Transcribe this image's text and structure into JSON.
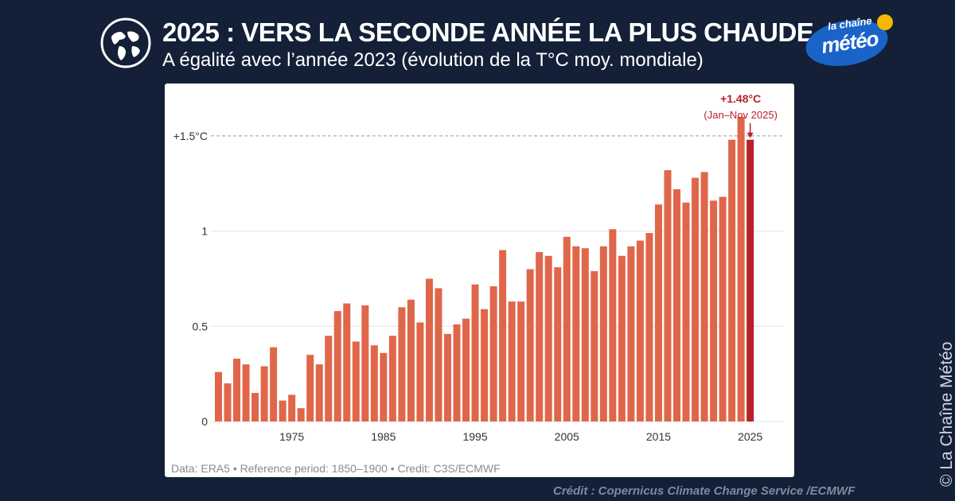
{
  "header": {
    "title": "2025 : VERS LA SECONDE ANNÉE LA PLUS CHAUDE",
    "subtitle": "A égalité avec l’année 2023 (évolution de la T°C moy. mondiale)",
    "globe_icon": "globe-icon"
  },
  "logo": {
    "small": "la chaîne",
    "big": "météo",
    "sun_color": "#f5b800",
    "bubble_color": "#1a63c8"
  },
  "footer": {
    "source": "Data: ERA5 • Reference period: 1850–1900 • Credit: C3S/ECMWF",
    "credit": "Crédit : Copernicus Climate Change Service /ECMWF",
    "side": "© La Chaîne Météo"
  },
  "colors": {
    "bar": "#e0664a",
    "highlight_bar": "#b81f2a",
    "annotation": "#b81f2a",
    "background": "#132037"
  },
  "chart_data": {
    "type": "bar",
    "x": [
      1967,
      1968,
      1969,
      1970,
      1971,
      1972,
      1973,
      1974,
      1975,
      1976,
      1977,
      1978,
      1979,
      1980,
      1981,
      1982,
      1983,
      1984,
      1985,
      1986,
      1987,
      1988,
      1989,
      1990,
      1991,
      1992,
      1993,
      1994,
      1995,
      1996,
      1997,
      1998,
      1999,
      2000,
      2001,
      2002,
      2003,
      2004,
      2005,
      2006,
      2007,
      2008,
      2009,
      2010,
      2011,
      2012,
      2013,
      2014,
      2015,
      2016,
      2017,
      2018,
      2019,
      2020,
      2021,
      2022,
      2023,
      2024,
      2025
    ],
    "values": [
      0.26,
      0.2,
      0.33,
      0.3,
      0.15,
      0.29,
      0.39,
      0.11,
      0.14,
      0.07,
      0.35,
      0.3,
      0.45,
      0.58,
      0.62,
      0.42,
      0.61,
      0.4,
      0.36,
      0.45,
      0.6,
      0.64,
      0.52,
      0.75,
      0.7,
      0.46,
      0.51,
      0.54,
      0.72,
      0.59,
      0.71,
      0.9,
      0.63,
      0.63,
      0.8,
      0.89,
      0.87,
      0.81,
      0.97,
      0.92,
      0.91,
      0.79,
      0.92,
      1.01,
      0.87,
      0.92,
      0.95,
      0.99,
      1.14,
      1.32,
      1.22,
      1.15,
      1.28,
      1.31,
      1.16,
      1.18,
      1.48,
      1.6,
      1.48
    ],
    "highlight": 2025,
    "x_ticks": [
      "1975",
      "1985",
      "1995",
      "2005",
      "2015",
      "2025"
    ],
    "y_ticks": [
      "0",
      "0.5",
      "1",
      "+1.5°C"
    ],
    "y_tick_values": [
      0,
      0.5,
      1,
      1.5
    ],
    "ylim": [
      0,
      1.65
    ],
    "threshold": 1.5,
    "annotation": {
      "value": "+1.48°C",
      "period": "(Jan–Nov 2025)"
    },
    "grid": true
  }
}
